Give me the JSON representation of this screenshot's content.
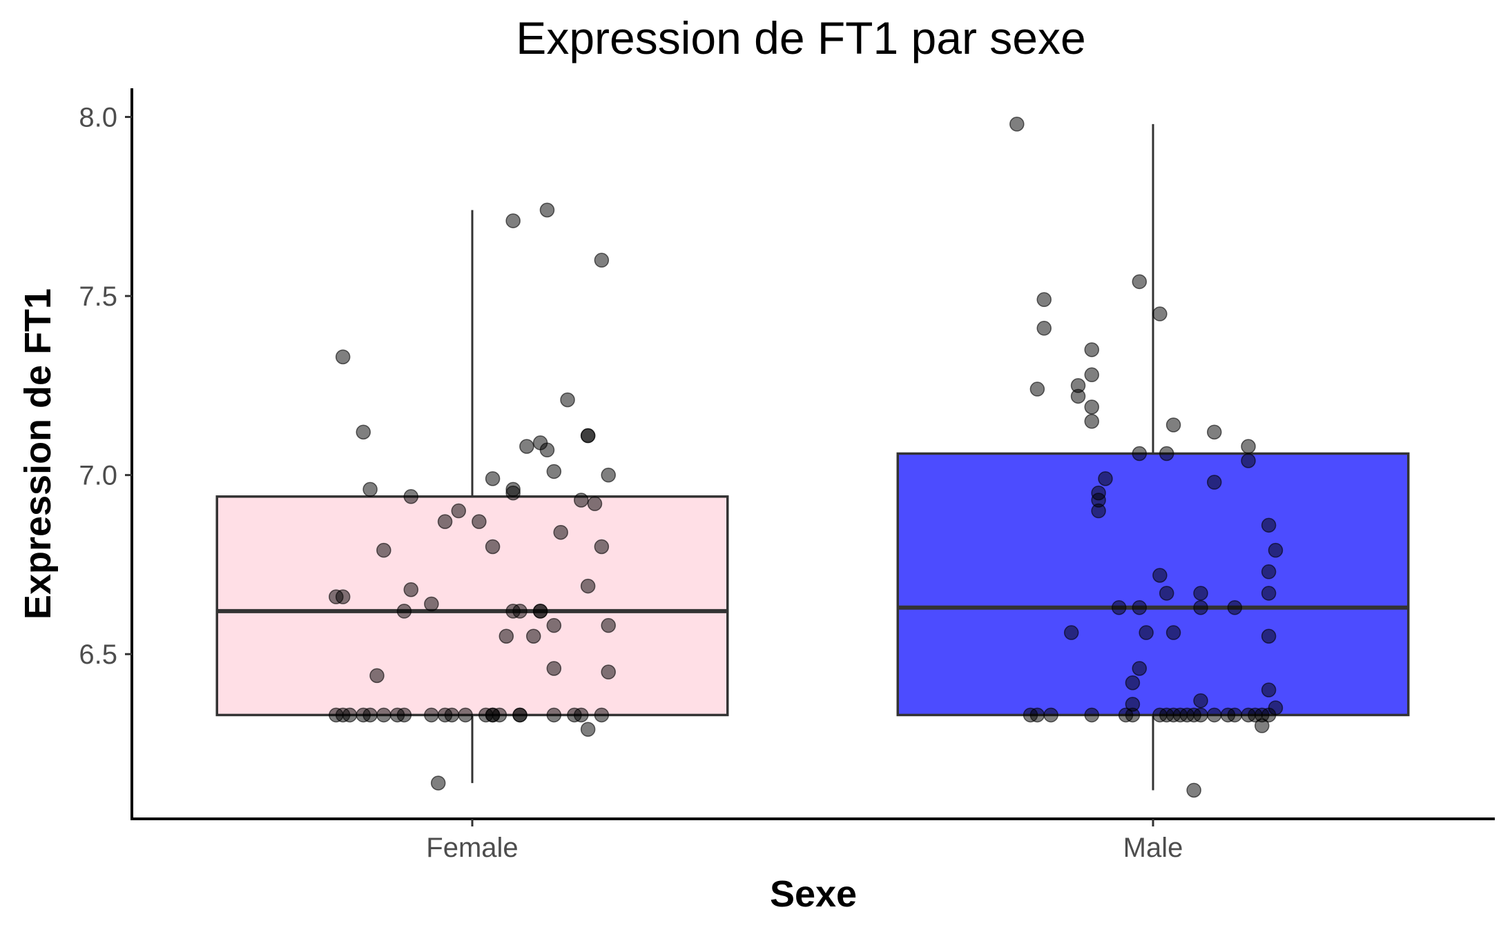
{
  "chart_data": {
    "type": "box",
    "title": "Expression de FT1 par sexe",
    "xlabel": "Sexe",
    "ylabel": "Expression de FT1",
    "categories": [
      "Female",
      "Male"
    ],
    "ylim": [
      6.04,
      8.08
    ],
    "yticks": [
      6.5,
      7.0,
      7.5,
      8.0
    ],
    "ytick_labels": [
      "6.5",
      "7.0",
      "7.5",
      "8.0"
    ],
    "grid": false,
    "legend": "none",
    "series": [
      {
        "category": "Female",
        "fill_color": "#ffd1dc",
        "box": {
          "whisker_low": 6.14,
          "q1": 6.33,
          "median": 6.62,
          "q3": 6.94,
          "whisker_high": 7.74
        },
        "points": [
          [
            -0.19,
            7.33
          ],
          [
            -0.16,
            7.12
          ],
          [
            -0.15,
            6.96
          ],
          [
            -0.13,
            6.79
          ],
          [
            -0.09,
            6.68
          ],
          [
            -0.09,
            6.94
          ],
          [
            -0.1,
            6.62
          ],
          [
            -0.06,
            6.64
          ],
          [
            -0.04,
            6.87
          ],
          [
            -0.02,
            6.9
          ],
          [
            0.01,
            6.87
          ],
          [
            0.03,
            6.8
          ],
          [
            0.03,
            6.99
          ],
          [
            0.05,
            6.55
          ],
          [
            0.06,
            6.95
          ],
          [
            0.06,
            6.96
          ],
          [
            0.06,
            6.62
          ],
          [
            0.07,
            6.62
          ],
          [
            0.1,
            6.62
          ],
          [
            0.08,
            7.08
          ],
          [
            0.09,
            6.55
          ],
          [
            0.1,
            7.09
          ],
          [
            0.1,
            6.62
          ],
          [
            0.11,
            7.07
          ],
          [
            0.12,
            7.01
          ],
          [
            0.12,
            6.58
          ],
          [
            0.13,
            6.84
          ],
          [
            0.14,
            7.21
          ],
          [
            0.12,
            6.46
          ],
          [
            0.16,
            6.93
          ],
          [
            0.17,
            7.11
          ],
          [
            0.17,
            6.69
          ],
          [
            0.17,
            7.11
          ],
          [
            0.18,
            6.92
          ],
          [
            0.19,
            6.8
          ],
          [
            0.2,
            7.0
          ],
          [
            0.2,
            6.58
          ],
          [
            0.2,
            6.45
          ],
          [
            0.06,
            7.71
          ],
          [
            0.11,
            7.74
          ],
          [
            0.19,
            7.6
          ],
          [
            -0.19,
            6.66
          ],
          [
            -0.2,
            6.66
          ],
          [
            -0.14,
            6.44
          ],
          [
            -0.05,
            6.14
          ],
          [
            0.17,
            6.29
          ],
          [
            -0.19,
            6.33
          ],
          [
            -0.2,
            6.33
          ],
          [
            -0.18,
            6.33
          ],
          [
            -0.16,
            6.33
          ],
          [
            -0.15,
            6.33
          ],
          [
            -0.13,
            6.33
          ],
          [
            -0.11,
            6.33
          ],
          [
            -0.1,
            6.33
          ],
          [
            -0.06,
            6.33
          ],
          [
            -0.04,
            6.33
          ],
          [
            -0.03,
            6.33
          ],
          [
            -0.01,
            6.33
          ],
          [
            0.02,
            6.33
          ],
          [
            0.03,
            6.33
          ],
          [
            0.03,
            6.33
          ],
          [
            0.04,
            6.33
          ],
          [
            0.07,
            6.33
          ],
          [
            0.07,
            6.33
          ],
          [
            0.12,
            6.33
          ],
          [
            0.15,
            6.33
          ],
          [
            0.16,
            6.33
          ],
          [
            0.19,
            6.33
          ]
        ]
      },
      {
        "category": "Male",
        "fill_color": "#0000ff",
        "box": {
          "whisker_low": 6.12,
          "q1": 6.33,
          "median": 6.63,
          "q3": 7.06,
          "whisker_high": 7.98
        },
        "points": [
          [
            -0.2,
            7.98
          ],
          [
            -0.17,
            7.24
          ],
          [
            -0.16,
            7.49
          ],
          [
            -0.16,
            7.41
          ],
          [
            -0.11,
            7.25
          ],
          [
            -0.09,
            7.28
          ],
          [
            -0.09,
            7.35
          ],
          [
            -0.09,
            7.19
          ],
          [
            -0.09,
            7.15
          ],
          [
            -0.11,
            7.22
          ],
          [
            -0.02,
            7.54
          ],
          [
            0.01,
            7.45
          ],
          [
            -0.02,
            7.06
          ],
          [
            0.02,
            7.06
          ],
          [
            0.03,
            7.14
          ],
          [
            0.09,
            7.12
          ],
          [
            0.14,
            7.04
          ],
          [
            0.14,
            7.08
          ],
          [
            -0.07,
            6.99
          ],
          [
            -0.08,
            6.93
          ],
          [
            -0.08,
            6.95
          ],
          [
            -0.08,
            6.9
          ],
          [
            0.09,
            6.98
          ],
          [
            0.17,
            6.86
          ],
          [
            0.18,
            6.79
          ],
          [
            0.17,
            6.73
          ],
          [
            0.17,
            6.67
          ],
          [
            0.07,
            6.67
          ],
          [
            0.02,
            6.67
          ],
          [
            0.01,
            6.72
          ],
          [
            -0.05,
            6.63
          ],
          [
            -0.02,
            6.63
          ],
          [
            0.07,
            6.63
          ],
          [
            0.12,
            6.63
          ],
          [
            -0.12,
            6.56
          ],
          [
            -0.01,
            6.56
          ],
          [
            0.03,
            6.56
          ],
          [
            0.17,
            6.55
          ],
          [
            -0.02,
            6.46
          ],
          [
            -0.03,
            6.42
          ],
          [
            0.17,
            6.4
          ],
          [
            0.18,
            6.35
          ],
          [
            -0.03,
            6.36
          ],
          [
            0.07,
            6.37
          ],
          [
            0.16,
            6.3
          ],
          [
            0.06,
            6.12
          ],
          [
            -0.18,
            6.33
          ],
          [
            -0.17,
            6.33
          ],
          [
            -0.15,
            6.33
          ],
          [
            -0.09,
            6.33
          ],
          [
            -0.03,
            6.33
          ],
          [
            -0.04,
            6.33
          ],
          [
            0.01,
            6.33
          ],
          [
            0.02,
            6.33
          ],
          [
            0.03,
            6.33
          ],
          [
            0.04,
            6.33
          ],
          [
            0.05,
            6.33
          ],
          [
            0.06,
            6.33
          ],
          [
            0.07,
            6.33
          ],
          [
            0.09,
            6.33
          ],
          [
            0.11,
            6.33
          ],
          [
            0.12,
            6.33
          ],
          [
            0.14,
            6.33
          ],
          [
            0.15,
            6.33
          ],
          [
            0.16,
            6.33
          ],
          [
            0.17,
            6.33
          ]
        ]
      }
    ]
  }
}
